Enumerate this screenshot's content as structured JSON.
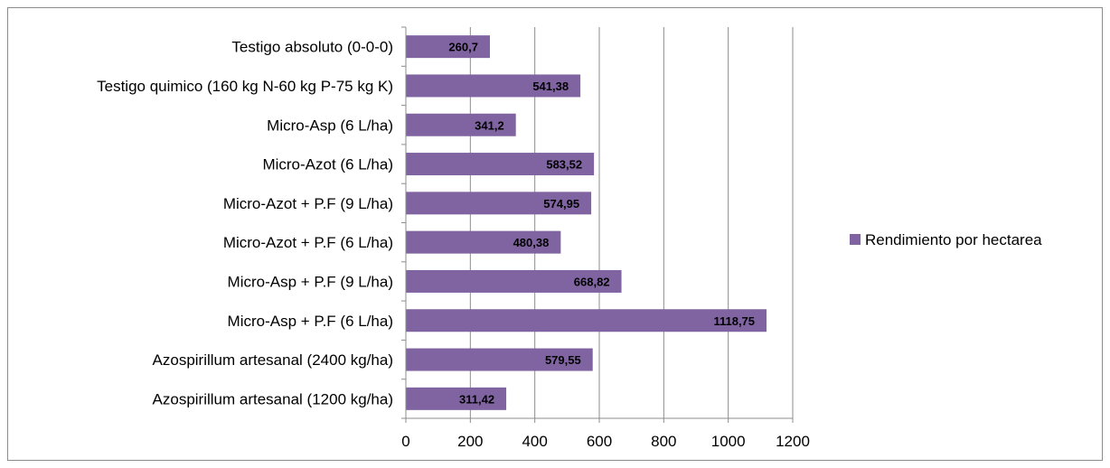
{
  "chart_data": {
    "type": "bar",
    "orientation": "horizontal",
    "categories": [
      "Testigo absoluto (0-0-0)",
      "Testigo quimico (160 kg N-60 kg P-75 kg K)",
      "Micro-Asp (6 L/ha)",
      "Micro-Azot (6 L/ha)",
      "Micro-Azot + P.F (9 L/ha)",
      "Micro-Azot + P.F (6 L/ha)",
      "Micro-Asp + P.F (9 L/ha)",
      "Micro-Asp + P.F (6 L/ha)",
      "Azospirillum artesanal (2400 kg/ha)",
      "Azospirillum artesanal (1200 kg/ha)"
    ],
    "series": [
      {
        "name": "Rendimiento por hectarea",
        "color": "#8064a2",
        "values": [
          260.7,
          541.38,
          341.2,
          583.52,
          574.95,
          480.38,
          668.82,
          1118.75,
          579.55,
          311.42
        ],
        "data_labels": [
          "260,7",
          "541,38",
          "341,2",
          "583,52",
          "574,95",
          "480,38",
          "668,82",
          "1118,75",
          "579,55",
          "311,42"
        ]
      }
    ],
    "xlim": [
      0,
      1200
    ],
    "xticks": [
      0,
      200,
      400,
      600,
      800,
      1000,
      1200
    ],
    "grid": true,
    "legend_position": "right"
  }
}
